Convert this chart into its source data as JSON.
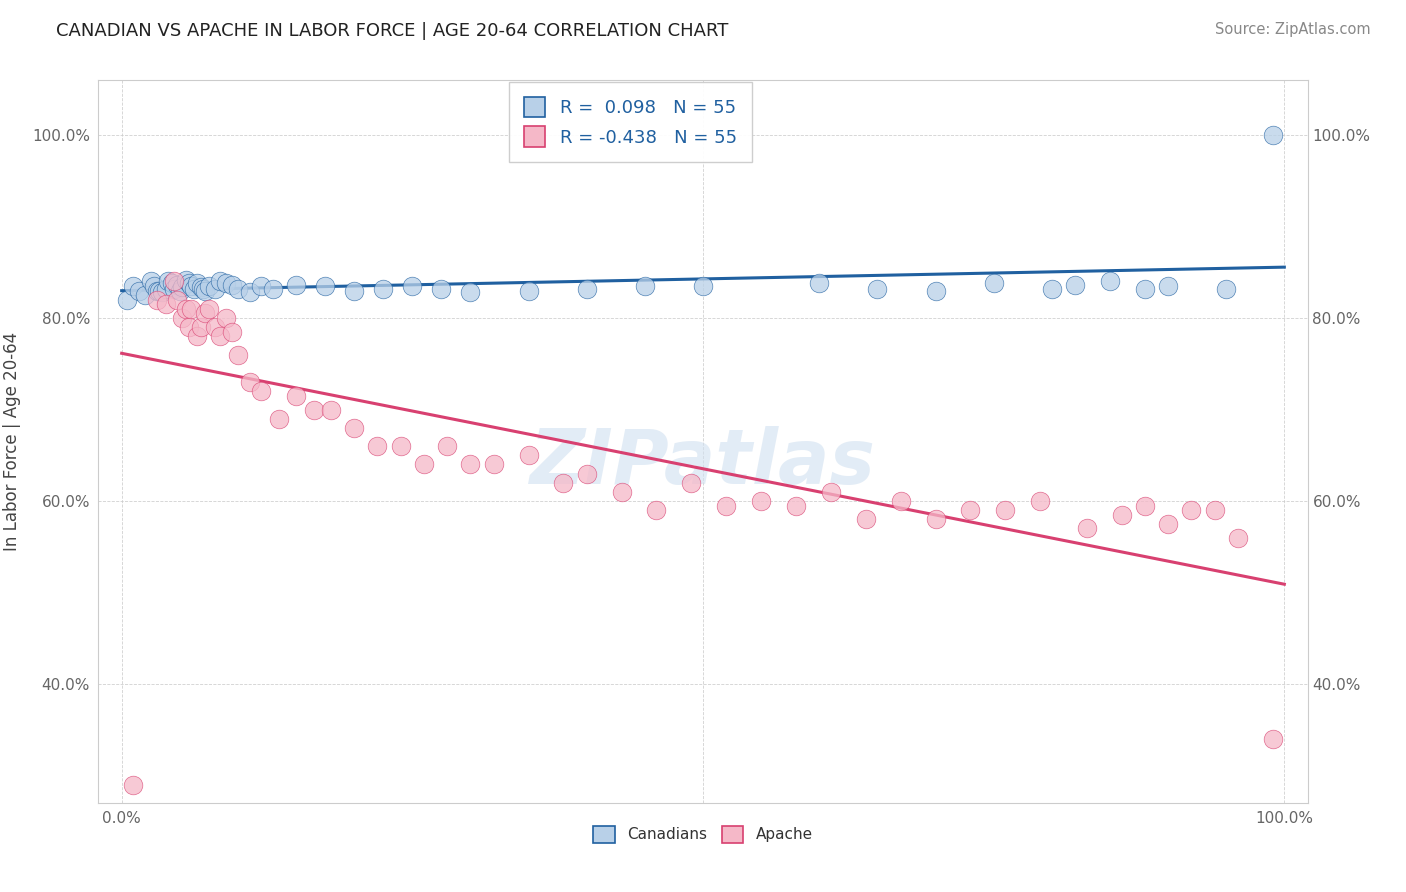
{
  "title": "CANADIAN VS APACHE IN LABOR FORCE | AGE 20-64 CORRELATION CHART",
  "source": "Source: ZipAtlas.com",
  "ylabel": "In Labor Force | Age 20-64",
  "xlim": [
    -0.02,
    1.02
  ],
  "ylim": [
    0.27,
    1.06
  ],
  "y_ticks": [
    0.4,
    0.6,
    0.8,
    1.0
  ],
  "y_ticklabels": [
    "40.0%",
    "60.0%",
    "80.0%",
    "100.0%"
  ],
  "r_canadian": 0.098,
  "n_canadian": 55,
  "r_apache": -0.438,
  "n_apache": 55,
  "canadians_color": "#b8d0e8",
  "apache_color": "#f5b8c8",
  "canadian_line_color": "#2060a0",
  "apache_line_color": "#d84070",
  "watermark": "ZIPatlas",
  "canadians_x": [
    0.005,
    0.01,
    0.015,
    0.02,
    0.025,
    0.028,
    0.03,
    0.032,
    0.035,
    0.038,
    0.04,
    0.043,
    0.045,
    0.048,
    0.05,
    0.052,
    0.055,
    0.058,
    0.06,
    0.062,
    0.065,
    0.068,
    0.07,
    0.072,
    0.075,
    0.08,
    0.085,
    0.09,
    0.095,
    0.1,
    0.11,
    0.12,
    0.13,
    0.15,
    0.175,
    0.2,
    0.225,
    0.25,
    0.275,
    0.3,
    0.35,
    0.4,
    0.45,
    0.5,
    0.6,
    0.65,
    0.7,
    0.75,
    0.8,
    0.82,
    0.85,
    0.88,
    0.9,
    0.95,
    0.99
  ],
  "canadians_y": [
    0.82,
    0.835,
    0.83,
    0.825,
    0.84,
    0.835,
    0.83,
    0.83,
    0.828,
    0.832,
    0.84,
    0.838,
    0.832,
    0.836,
    0.83,
    0.834,
    0.842,
    0.838,
    0.835,
    0.832,
    0.838,
    0.834,
    0.832,
    0.83,
    0.835,
    0.832,
    0.84,
    0.838,
    0.836,
    0.832,
    0.828,
    0.835,
    0.832,
    0.836,
    0.835,
    0.83,
    0.832,
    0.835,
    0.832,
    0.828,
    0.83,
    0.832,
    0.835,
    0.835,
    0.838,
    0.832,
    0.83,
    0.838,
    0.832,
    0.836,
    0.84,
    0.832,
    0.835,
    0.832,
    1.0
  ],
  "apache_x": [
    0.01,
    0.03,
    0.038,
    0.045,
    0.048,
    0.052,
    0.055,
    0.058,
    0.06,
    0.065,
    0.068,
    0.072,
    0.075,
    0.08,
    0.085,
    0.09,
    0.095,
    0.1,
    0.11,
    0.12,
    0.135,
    0.15,
    0.165,
    0.18,
    0.2,
    0.22,
    0.24,
    0.26,
    0.28,
    0.3,
    0.32,
    0.35,
    0.38,
    0.4,
    0.43,
    0.46,
    0.49,
    0.52,
    0.55,
    0.58,
    0.61,
    0.64,
    0.67,
    0.7,
    0.73,
    0.76,
    0.79,
    0.83,
    0.86,
    0.88,
    0.9,
    0.92,
    0.94,
    0.96,
    0.99
  ],
  "apache_y": [
    0.29,
    0.82,
    0.815,
    0.84,
    0.82,
    0.8,
    0.81,
    0.79,
    0.81,
    0.78,
    0.79,
    0.805,
    0.81,
    0.79,
    0.78,
    0.8,
    0.785,
    0.76,
    0.73,
    0.72,
    0.69,
    0.715,
    0.7,
    0.7,
    0.68,
    0.66,
    0.66,
    0.64,
    0.66,
    0.64,
    0.64,
    0.65,
    0.62,
    0.63,
    0.61,
    0.59,
    0.62,
    0.595,
    0.6,
    0.595,
    0.61,
    0.58,
    0.6,
    0.58,
    0.59,
    0.59,
    0.6,
    0.57,
    0.585,
    0.595,
    0.575,
    0.59,
    0.59,
    0.56,
    0.34
  ]
}
